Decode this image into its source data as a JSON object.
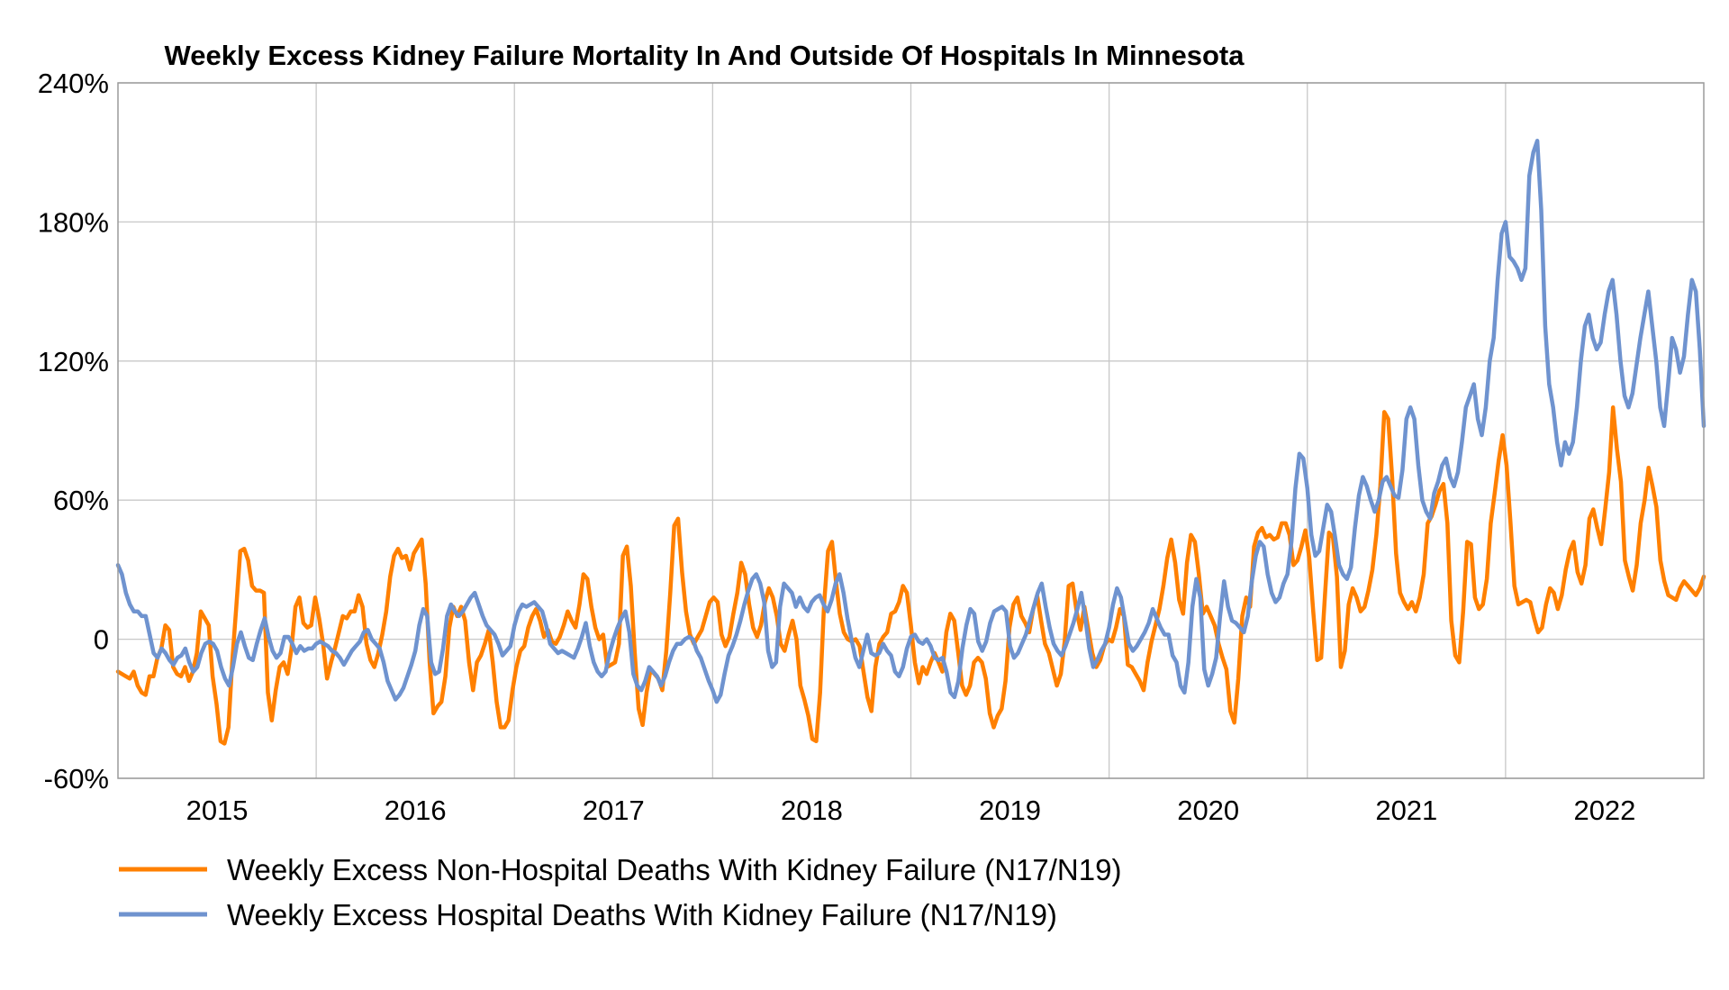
{
  "chart_data": {
    "type": "line",
    "title": "Weekly Excess Kidney Failure Mortality In And Outside Of Hospitals In Minnesota",
    "xlabel": "",
    "ylabel": "",
    "x_start": "2014-07",
    "x_end": "2022-07",
    "x_tick_labels": [
      "2015",
      "2016",
      "2017",
      "2018",
      "2019",
      "2020",
      "2021",
      "2022"
    ],
    "ylim": [
      -60,
      240
    ],
    "y_ticks": [
      -60,
      0,
      60,
      120,
      180,
      240
    ],
    "y_tick_labels": [
      "-60%",
      "0",
      "60%",
      "120%",
      "180%",
      "240%"
    ],
    "grid": true,
    "legend_position": "bottom-left",
    "series": [
      {
        "name": "Weekly Excess Non-Hospital Deaths With Kidney Failure (N17/N19)",
        "color": "#FF8000",
        "values": [
          -14,
          -15,
          -16,
          -17,
          -14,
          -20,
          -23,
          -24,
          -16,
          -16,
          -8,
          -4,
          6,
          4,
          -12,
          -15,
          -16,
          -12,
          -18,
          -14,
          -6,
          12,
          9,
          6,
          -16,
          -28,
          -44,
          -45,
          -38,
          -9,
          14,
          38,
          39,
          34,
          23,
          21,
          21,
          20,
          -23,
          -35,
          -22,
          -12,
          -10,
          -15,
          -4,
          14,
          18,
          7,
          5,
          6,
          18,
          9,
          -2,
          -17,
          -10,
          -4,
          3,
          10,
          9,
          12,
          12,
          19,
          14,
          -2,
          -9,
          -12,
          -6,
          2,
          12,
          27,
          36,
          39,
          35,
          36,
          30,
          37,
          40,
          43,
          24,
          -10,
          -32,
          -29,
          -27,
          -16,
          5,
          14,
          10,
          14,
          8,
          -10,
          -22,
          -10,
          -7,
          -2,
          4,
          -10,
          -27,
          -38,
          -38,
          -35,
          -22,
          -12,
          -5,
          -3,
          5,
          10,
          13,
          8,
          1,
          4,
          -1,
          -2,
          1,
          6,
          12,
          8,
          5,
          15,
          28,
          26,
          14,
          5,
          0,
          2,
          -12,
          -11,
          -10,
          -2,
          36,
          40,
          23,
          -6,
          -30,
          -37,
          -23,
          -13,
          -15,
          -17,
          -22,
          -5,
          20,
          49,
          52,
          29,
          12,
          2,
          -2,
          1,
          4,
          10,
          16,
          18,
          16,
          2,
          -3,
          1,
          11,
          20,
          33,
          28,
          15,
          5,
          1,
          6,
          16,
          22,
          18,
          10,
          -2,
          -5,
          2,
          8,
          0,
          -20,
          -26,
          -33,
          -43,
          -44,
          -23,
          15,
          38,
          42,
          25,
          11,
          3,
          0,
          -1,
          0,
          -3,
          -14,
          -25,
          -31,
          -12,
          -2,
          1,
          3,
          11,
          12,
          16,
          23,
          20,
          6,
          -10,
          -19,
          -12,
          -15,
          -10,
          -6,
          -10,
          -14,
          3,
          11,
          8,
          -6,
          -20,
          -24,
          -20,
          -10,
          -8,
          -10,
          -17,
          -32,
          -38,
          -33,
          -30,
          -18,
          5,
          15,
          18,
          10,
          7,
          3,
          13,
          19,
          8,
          -2,
          -6,
          -13,
          -20,
          -15,
          -1,
          23,
          24,
          12,
          4,
          14,
          4,
          -6,
          -12,
          -9,
          -3,
          0,
          -1,
          5,
          13,
          10,
          -11,
          -12,
          -15,
          -18,
          -22,
          -10,
          -1,
          6,
          13,
          23,
          35,
          43,
          33,
          17,
          11,
          33,
          45,
          42,
          28,
          11,
          14,
          10,
          6,
          -2,
          -8,
          -13,
          -31,
          -36,
          -17,
          10,
          18,
          14,
          40,
          46,
          48,
          44,
          45,
          43,
          44,
          50,
          50,
          45,
          32,
          34,
          40,
          47,
          35,
          12,
          -9,
          -8,
          20,
          46,
          44,
          27,
          -12,
          -5,
          15,
          22,
          18,
          12,
          14,
          21,
          30,
          45,
          66,
          98,
          95,
          70,
          37,
          20,
          16,
          13,
          16,
          12,
          18,
          28,
          50,
          53,
          58,
          64,
          67,
          50,
          8,
          -7,
          -10,
          12,
          42,
          41,
          18,
          13,
          15,
          26,
          50,
          63,
          77,
          88,
          75,
          50,
          23,
          15,
          16,
          17,
          16,
          9,
          3,
          5,
          15,
          22,
          20,
          13,
          19,
          30,
          38,
          42,
          29,
          24,
          32,
          52,
          56,
          48,
          41,
          56,
          72,
          100,
          82,
          68,
          34,
          27,
          21,
          32,
          50,
          60,
          74,
          66,
          57,
          34,
          25,
          19,
          18,
          17,
          22,
          25,
          23,
          21,
          19,
          22,
          27
        ]
      },
      {
        "name": "Weekly Excess Hospital Deaths With Kidney Failure (N17/N19)",
        "color": "#6F93CF",
        "values": [
          32,
          28,
          20,
          15,
          12,
          12,
          10,
          10,
          2,
          -6,
          -8,
          -4,
          -6,
          -9,
          -11,
          -8,
          -7,
          -4,
          -10,
          -14,
          -12,
          -6,
          -2,
          -1,
          -2,
          -5,
          -12,
          -17,
          -20,
          -12,
          -2,
          3,
          -3,
          -8,
          -9,
          -2,
          4,
          9,
          1,
          -5,
          -8,
          -6,
          1,
          1,
          -2,
          -6,
          -3,
          -5,
          -4,
          -4,
          -2,
          -1,
          -2,
          -3,
          -5,
          -6,
          -8,
          -11,
          -8,
          -5,
          -3,
          -1,
          3,
          4,
          0,
          -2,
          -4,
          -10,
          -18,
          -22,
          -26,
          -24,
          -21,
          -16,
          -11,
          -5,
          6,
          13,
          10,
          -10,
          -15,
          -14,
          -4,
          10,
          15,
          12,
          10,
          12,
          15,
          18,
          20,
          15,
          10,
          6,
          4,
          2,
          -2,
          -7,
          -5,
          -3,
          6,
          12,
          15,
          14,
          15,
          16,
          14,
          12,
          6,
          -2,
          -4,
          -6,
          -5,
          -6,
          -7,
          -8,
          -4,
          1,
          7,
          -3,
          -10,
          -14,
          -16,
          -14,
          -6,
          0,
          5,
          9,
          12,
          3,
          -15,
          -20,
          -22,
          -18,
          -12,
          -14,
          -16,
          -20,
          -16,
          -10,
          -5,
          -2,
          -2,
          0,
          1,
          0,
          -5,
          -8,
          -13,
          -18,
          -22,
          -27,
          -24,
          -15,
          -7,
          -3,
          2,
          8,
          15,
          21,
          26,
          28,
          24,
          16,
          -5,
          -12,
          -10,
          14,
          24,
          22,
          20,
          14,
          18,
          14,
          12,
          16,
          18,
          19,
          15,
          12,
          17,
          24,
          28,
          20,
          9,
          0,
          -8,
          -12,
          -5,
          2,
          -6,
          -7,
          -6,
          -2,
          -5,
          -7,
          -14,
          -16,
          -12,
          -4,
          1,
          2,
          -1,
          -2,
          0,
          -3,
          -8,
          -9,
          -8,
          -14,
          -23,
          -25,
          -18,
          -4,
          6,
          13,
          11,
          -1,
          -5,
          -1,
          7,
          12,
          13,
          14,
          12,
          -3,
          -8,
          -6,
          -2,
          2,
          8,
          14,
          20,
          24,
          14,
          5,
          -2,
          -5,
          -7,
          -3,
          2,
          7,
          13,
          20,
          9,
          -4,
          -12,
          -9,
          -5,
          -2,
          5,
          15,
          22,
          18,
          8,
          -2,
          -5,
          -3,
          0,
          3,
          7,
          13,
          9,
          5,
          2,
          2,
          -7,
          -10,
          -20,
          -23,
          -10,
          14,
          26,
          18,
          -13,
          -20,
          -15,
          -8,
          10,
          25,
          14,
          8,
          7,
          5,
          3,
          10,
          25,
          36,
          42,
          40,
          28,
          20,
          16,
          18,
          24,
          28,
          42,
          65,
          80,
          78,
          65,
          45,
          36,
          38,
          48,
          58,
          55,
          44,
          32,
          28,
          26,
          31,
          48,
          62,
          70,
          66,
          60,
          55,
          60,
          68,
          70,
          66,
          62,
          61,
          73,
          95,
          100,
          95,
          75,
          60,
          55,
          52,
          63,
          68,
          75,
          78,
          70,
          66,
          72,
          85,
          100,
          105,
          110,
          95,
          88,
          100,
          120,
          130,
          155,
          175,
          180,
          165,
          163,
          160,
          155,
          160,
          200,
          210,
          215,
          185,
          135,
          110,
          100,
          85,
          75,
          85,
          80,
          85,
          100,
          120,
          135,
          140,
          130,
          125,
          128,
          140,
          150,
          155,
          140,
          120,
          105,
          100,
          106,
          118,
          130,
          140,
          150,
          135,
          120,
          100,
          92,
          110,
          130,
          125,
          115,
          122,
          140,
          155,
          150,
          125,
          92
        ]
      }
    ]
  }
}
